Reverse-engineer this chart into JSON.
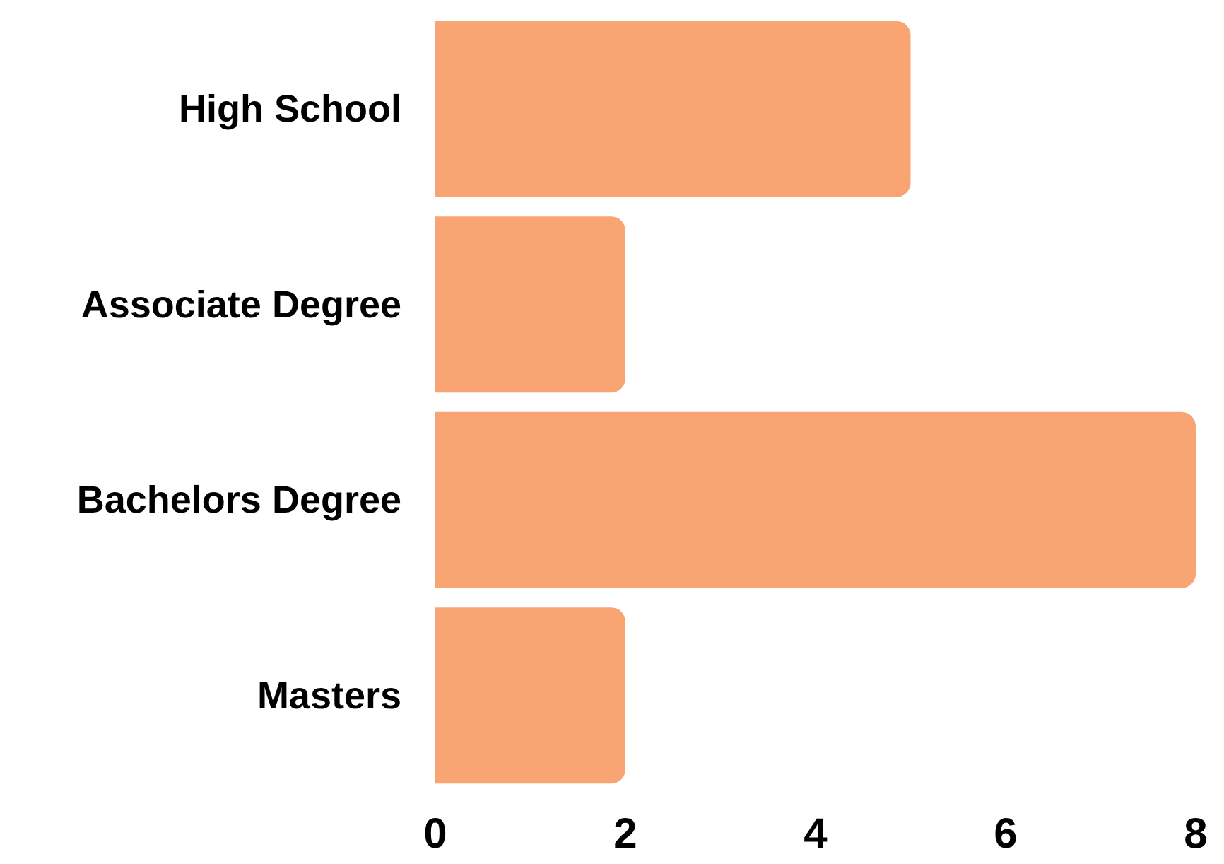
{
  "chart_data": {
    "type": "bar",
    "orientation": "horizontal",
    "categories": [
      "High School",
      "Associate Degree",
      "Bachelors Degree",
      "Masters"
    ],
    "values": [
      5,
      2,
      8,
      2
    ],
    "color": "#f9a473",
    "xlim": [
      0,
      8
    ],
    "xticks": [
      0,
      2,
      4,
      6,
      8
    ],
    "grid": false
  }
}
